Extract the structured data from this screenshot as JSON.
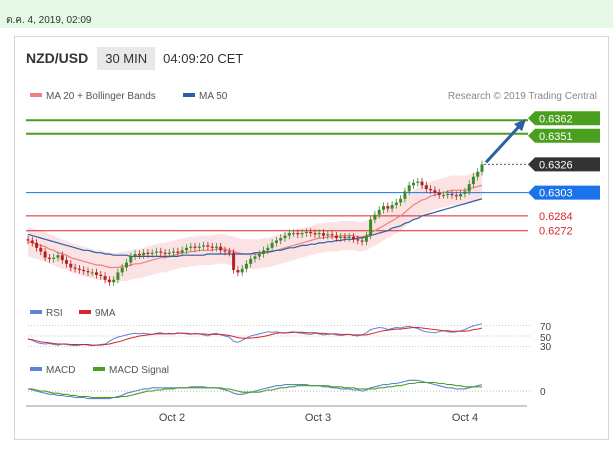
{
  "timestamp": "ต.ค. 4, 2019, 02:09",
  "header": {
    "pair": "NZD/USD",
    "timeframe": "30 MIN",
    "time": "04:09:20 CET"
  },
  "credit": "Research © 2019 Trading Central",
  "colors": {
    "ma20": "#f08080",
    "ma50": "#2b5fa6",
    "support_resistance_green": "#4aa01e",
    "current": "#333333",
    "blue_level": "#1a73e8",
    "red_level": "#d62728",
    "rsi": "#5b84d1",
    "rsi9ma": "#d62728",
    "macd": "#5b84d1",
    "macd_signal": "#4aa01e",
    "arrow": "#2b5fa6"
  },
  "chart_data": [
    {
      "type": "line",
      "title": "",
      "legend": [
        "MA 20 + Bollinger Bands",
        "MA 50"
      ],
      "legend_placement": "top-left",
      "x_ticks": [
        "Oct 2",
        "Oct 3",
        "Oct 4"
      ],
      "ylim": [
        0.6222,
        0.6372
      ],
      "levels": [
        {
          "label": "0.6362",
          "value": 0.6362,
          "kind": "green"
        },
        {
          "label": "0.6351",
          "value": 0.6351,
          "kind": "green"
        },
        {
          "label": "0.6326",
          "value": 0.6326,
          "kind": "current"
        },
        {
          "label": "0.6303",
          "value": 0.6303,
          "kind": "blue"
        },
        {
          "label": "0.6284",
          "value": 0.6284,
          "kind": "red"
        },
        {
          "label": "0.6272",
          "value": 0.6272,
          "kind": "red"
        }
      ],
      "close": [
        0.6264,
        0.6262,
        0.6258,
        0.6255,
        0.625,
        0.6249,
        0.625,
        0.6252,
        0.6248,
        0.6245,
        0.6242,
        0.6241,
        0.624,
        0.6239,
        0.6238,
        0.6238,
        0.6236,
        0.6235,
        0.6232,
        0.623,
        0.6232,
        0.6238,
        0.6242,
        0.6246,
        0.6251,
        0.6253,
        0.6252,
        0.6254,
        0.6253,
        0.6254,
        0.6255,
        0.6254,
        0.6253,
        0.6254,
        0.6255,
        0.6254,
        0.6256,
        0.6258,
        0.6259,
        0.6258,
        0.6259,
        0.626,
        0.6259,
        0.6258,
        0.6259,
        0.6256,
        0.6255,
        0.6254,
        0.624,
        0.6238,
        0.6241,
        0.6245,
        0.6249,
        0.6251,
        0.6253,
        0.6256,
        0.6258,
        0.6262,
        0.6264,
        0.6266,
        0.6268,
        0.627,
        0.627,
        0.6269,
        0.627,
        0.6271,
        0.627,
        0.6269,
        0.627,
        0.6268,
        0.6269,
        0.6268,
        0.6266,
        0.6267,
        0.6266,
        0.6267,
        0.6265,
        0.6264,
        0.6263,
        0.6268,
        0.6281,
        0.6285,
        0.6289,
        0.6292,
        0.629,
        0.6293,
        0.6295,
        0.6298,
        0.6304,
        0.6309,
        0.6311,
        0.6312,
        0.6309,
        0.6306,
        0.6305,
        0.6303,
        0.6301,
        0.6301,
        0.6302,
        0.6301,
        0.63,
        0.6302,
        0.6304,
        0.631,
        0.6316,
        0.632,
        0.6326
      ],
      "ma20": [
        0.6263,
        0.6262,
        0.6261,
        0.626,
        0.6259,
        0.6257,
        0.6256,
        0.6254,
        0.6253,
        0.6252,
        0.625,
        0.6249,
        0.6248,
        0.6247,
        0.6246,
        0.6245,
        0.6244,
        0.6244,
        0.6243,
        0.6242,
        0.6242,
        0.6242,
        0.6243,
        0.6243,
        0.6244,
        0.6245,
        0.6245,
        0.6246,
        0.6247,
        0.6248,
        0.6249,
        0.625,
        0.625,
        0.6251,
        0.6252,
        0.6253,
        0.6254,
        0.6254,
        0.6255,
        0.6255,
        0.6256,
        0.6256,
        0.6256,
        0.6256,
        0.6257,
        0.6257,
        0.6257,
        0.6256,
        0.6255,
        0.6254,
        0.6253,
        0.6253,
        0.6253,
        0.6253,
        0.6253,
        0.6254,
        0.6254,
        0.6255,
        0.6256,
        0.6257,
        0.6258,
        0.6259,
        0.626,
        0.6261,
        0.6262,
        0.6263,
        0.6264,
        0.6265,
        0.6266,
        0.6266,
        0.6267,
        0.6267,
        0.6267,
        0.6268,
        0.6268,
        0.6268,
        0.6268,
        0.6267,
        0.6267,
        0.6268,
        0.627,
        0.6272,
        0.6274,
        0.6276,
        0.6278,
        0.628,
        0.6282,
        0.6284,
        0.6287,
        0.629,
        0.6293,
        0.6295,
        0.6297,
        0.6298,
        0.63,
        0.6301,
        0.6302,
        0.6303,
        0.6304,
        0.6305,
        0.6305,
        0.6305,
        0.6305,
        0.6306,
        0.6307,
        0.6308,
        0.6309
      ],
      "ma50": [
        0.6269,
        0.6268,
        0.6267,
        0.6266,
        0.6265,
        0.6264,
        0.6263,
        0.6262,
        0.6261,
        0.626,
        0.6259,
        0.6258,
        0.6257,
        0.6256,
        0.6256,
        0.6255,
        0.6254,
        0.6254,
        0.6253,
        0.6253,
        0.6252,
        0.6252,
        0.6252,
        0.6252,
        0.6251,
        0.6251,
        0.6251,
        0.6251,
        0.6251,
        0.6251,
        0.6251,
        0.6251,
        0.6251,
        0.6251,
        0.6251,
        0.6251,
        0.6252,
        0.6252,
        0.6252,
        0.6252,
        0.6252,
        0.6252,
        0.6253,
        0.6253,
        0.6253,
        0.6253,
        0.6253,
        0.6253,
        0.6253,
        0.6253,
        0.6253,
        0.6253,
        0.6253,
        0.6254,
        0.6254,
        0.6254,
        0.6255,
        0.6255,
        0.6256,
        0.6256,
        0.6257,
        0.6258,
        0.6258,
        0.6259,
        0.626,
        0.626,
        0.6261,
        0.6261,
        0.6262,
        0.6262,
        0.6263,
        0.6263,
        0.6264,
        0.6264,
        0.6265,
        0.6265,
        0.6265,
        0.6266,
        0.6266,
        0.6267,
        0.6268,
        0.6269,
        0.627,
        0.6271,
        0.6272,
        0.6274,
        0.6275,
        0.6276,
        0.6278,
        0.6279,
        0.6281,
        0.6282,
        0.6284,
        0.6285,
        0.6286,
        0.6287,
        0.6288,
        0.6289,
        0.629,
        0.6291,
        0.6292,
        0.6293,
        0.6294,
        0.6295,
        0.6296,
        0.6297,
        0.6298
      ],
      "bollinger_width": 0.0012,
      "forecast_target": 0.6362
    },
    {
      "type": "line",
      "legend": [
        "RSI",
        "9MA"
      ],
      "legend_placement": "top-left",
      "y_ticks": [
        "70",
        "50",
        "30"
      ],
      "ylim": [
        20,
        80
      ],
      "rsi": [
        45,
        42,
        38,
        36,
        35,
        36,
        34,
        33,
        35,
        34,
        33,
        32,
        33,
        34,
        33,
        32,
        33,
        34,
        35,
        40,
        45,
        48,
        50,
        52,
        54,
        55,
        54,
        55,
        54,
        53,
        55,
        56,
        54,
        55,
        54,
        56,
        55,
        54,
        53,
        55,
        54,
        52,
        50,
        54,
        55,
        52,
        50,
        48,
        40,
        38,
        42,
        46,
        50,
        52,
        54,
        56,
        58,
        57,
        58,
        56,
        55,
        57,
        58,
        56,
        55,
        54,
        53,
        55,
        54,
        52,
        53,
        54,
        52,
        51,
        52,
        53,
        51,
        50,
        52,
        56,
        62,
        64,
        66,
        65,
        62,
        64,
        66,
        65,
        67,
        68,
        66,
        64,
        60,
        58,
        57,
        56,
        58,
        60,
        58,
        57,
        58,
        60,
        62,
        66,
        69,
        71,
        73
      ],
      "rsi9ma": [
        44,
        43,
        41,
        39,
        38,
        37,
        36,
        35,
        35,
        35,
        34,
        34,
        34,
        34,
        34,
        33,
        33,
        33,
        34,
        35,
        37,
        39,
        41,
        44,
        46,
        48,
        50,
        51,
        52,
        53,
        54,
        54,
        54,
        54,
        54,
        55,
        55,
        55,
        54,
        54,
        54,
        54,
        53,
        53,
        53,
        53,
        52,
        51,
        49,
        47,
        46,
        46,
        46,
        47,
        48,
        49,
        51,
        53,
        55,
        56,
        56,
        56,
        57,
        57,
        57,
        56,
        56,
        56,
        55,
        55,
        54,
        54,
        54,
        53,
        53,
        53,
        52,
        52,
        52,
        52,
        54,
        56,
        58,
        60,
        61,
        62,
        63,
        63,
        64,
        65,
        66,
        66,
        65,
        64,
        63,
        62,
        61,
        60,
        60,
        59,
        59,
        59,
        59,
        60,
        62,
        63,
        65
      ]
    },
    {
      "type": "line",
      "legend": [
        "MACD",
        "MACD Signal"
      ],
      "legend_placement": "top-left",
      "y_ticks": [
        "0"
      ],
      "ylim": [
        -0.0012,
        0.0014
      ],
      "macd": [
        0.0002,
        0.0001,
        0.0,
        -0.0001,
        -0.0002,
        -0.0003,
        -0.0003,
        -0.0004,
        -0.0004,
        -0.0005,
        -0.0005,
        -0.0006,
        -0.0006,
        -0.0006,
        -0.0007,
        -0.0007,
        -0.0007,
        -0.0007,
        -0.0007,
        -0.0007,
        -0.0006,
        -0.0005,
        -0.0004,
        -0.0002,
        -0.0001,
        0.0,
        0.0001,
        0.0002,
        0.0002,
        0.0003,
        0.0003,
        0.0003,
        0.0003,
        0.0003,
        0.0003,
        0.0003,
        0.0003,
        0.0003,
        0.0004,
        0.0004,
        0.0004,
        0.0004,
        0.0003,
        0.0003,
        0.0003,
        0.0002,
        0.0001,
        0.0,
        -0.0002,
        -0.0003,
        -0.0003,
        -0.0002,
        -0.0001,
        0.0,
        0.0001,
        0.0002,
        0.0003,
        0.0004,
        0.0005,
        0.0005,
        0.0006,
        0.0006,
        0.0006,
        0.0006,
        0.0006,
        0.0006,
        0.0005,
        0.0005,
        0.0005,
        0.0004,
        0.0004,
        0.0003,
        0.0003,
        0.0002,
        0.0002,
        0.0002,
        0.0001,
        0.0001,
        0.0,
        0.0001,
        0.0003,
        0.0004,
        0.0005,
        0.0006,
        0.0006,
        0.0007,
        0.0007,
        0.0008,
        0.0009,
        0.001,
        0.001,
        0.001,
        0.0009,
        0.0008,
        0.0007,
        0.0006,
        0.0005,
        0.0004,
        0.0003,
        0.0003,
        0.0002,
        0.0002,
        0.0002,
        0.0003,
        0.0004,
        0.0005,
        0.0006
      ],
      "macd_signal": [
        0.0002,
        0.0002,
        0.0001,
        0.0,
        0.0,
        -0.0001,
        -0.0002,
        -0.0002,
        -0.0003,
        -0.0003,
        -0.0004,
        -0.0004,
        -0.0005,
        -0.0005,
        -0.0005,
        -0.0006,
        -0.0006,
        -0.0006,
        -0.0006,
        -0.0006,
        -0.0006,
        -0.0006,
        -0.0005,
        -0.0005,
        -0.0004,
        -0.0003,
        -0.0002,
        -0.0001,
        0.0,
        0.0,
        0.0001,
        0.0001,
        0.0002,
        0.0002,
        0.0002,
        0.0003,
        0.0003,
        0.0003,
        0.0003,
        0.0003,
        0.0003,
        0.0003,
        0.0003,
        0.0003,
        0.0003,
        0.0003,
        0.0002,
        0.0002,
        0.0001,
        0.0,
        -0.0001,
        -0.0001,
        -0.0001,
        -0.0001,
        -0.0001,
        0.0,
        0.0001,
        0.0001,
        0.0002,
        0.0003,
        0.0003,
        0.0004,
        0.0004,
        0.0005,
        0.0005,
        0.0005,
        0.0005,
        0.0005,
        0.0005,
        0.0005,
        0.0005,
        0.0004,
        0.0004,
        0.0004,
        0.0003,
        0.0003,
        0.0003,
        0.0002,
        0.0002,
        0.0002,
        0.0002,
        0.0002,
        0.0003,
        0.0003,
        0.0004,
        0.0004,
        0.0005,
        0.0005,
        0.0006,
        0.0007,
        0.0007,
        0.0008,
        0.0008,
        0.0008,
        0.0008,
        0.0008,
        0.0007,
        0.0007,
        0.0006,
        0.0006,
        0.0005,
        0.0005,
        0.0004,
        0.0004,
        0.0004,
        0.0004,
        0.0004
      ]
    }
  ]
}
